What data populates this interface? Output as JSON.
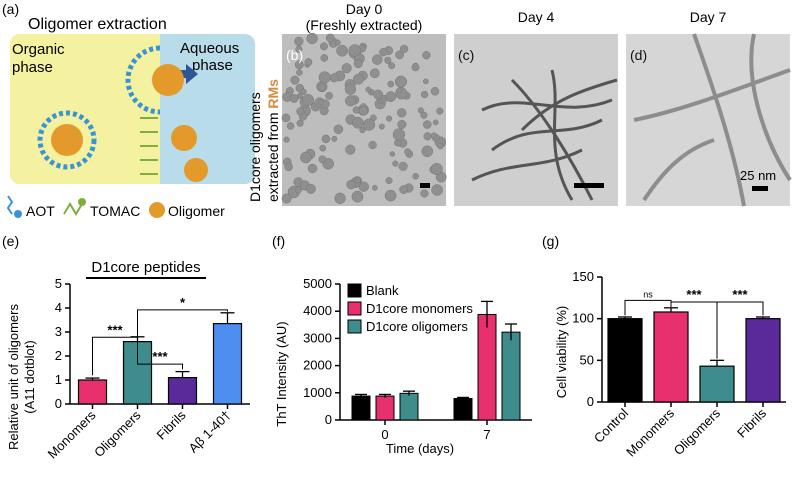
{
  "panel_a": {
    "label": "(a)",
    "title": "Oligomer extraction",
    "organic": [
      "Organic",
      "phase"
    ],
    "aqueous": [
      "Aqueous",
      "phase"
    ],
    "legend": {
      "aot": "AOT",
      "tomac": "TOMAC",
      "oligomer": "Oligomer"
    },
    "colors": {
      "organic_bg": "#f4f1a0",
      "aqueous_bg": "#b9dcea",
      "surfactant": "#3a93d6",
      "oligomer": "#e39a2a"
    }
  },
  "tem": {
    "side_label_top": "D1core oligomers",
    "side_label_bottom_prefix": "extracted from ",
    "side_label_bottom_highlight": "RMs",
    "highlight_color": "#d98a3d",
    "panels": [
      {
        "label": "(b)",
        "title_line1": "Day 0",
        "title_line2": "(Freshly extracted)"
      },
      {
        "label": "(c)",
        "title_line1": "Day 4",
        "title_line2": ""
      },
      {
        "label": "(d)",
        "title_line1": "Day 7",
        "title_line2": ""
      }
    ],
    "scale_text": "25 nm"
  },
  "chart_data": [
    {
      "panel": "(e)",
      "type": "bar",
      "title": "D1core peptides",
      "ylabel_line1": "Relative unit of oligomers",
      "ylabel_line2": "(A11 dotblot)",
      "categories": [
        "Monomers",
        "Oligomers",
        "Fibrils",
        "Aβ 1-40†"
      ],
      "values": [
        1.0,
        2.6,
        1.1,
        3.35
      ],
      "errors": [
        0.08,
        0.2,
        0.25,
        0.45
      ],
      "colors": [
        "#e8306e",
        "#3e8c8c",
        "#5a2a9a",
        "#4d8ef0"
      ],
      "ylim": [
        0,
        5
      ],
      "yticks": [
        "0",
        "1",
        "2",
        "3",
        "4",
        "5"
      ],
      "significance": [
        {
          "from": 0,
          "to": 1,
          "label": "***"
        },
        {
          "from": 1,
          "to": 2,
          "label": "***"
        },
        {
          "from": 1,
          "to": 3,
          "label": "*"
        }
      ]
    },
    {
      "panel": "(f)",
      "type": "bar",
      "ylabel": "ThT Intensity (AU)",
      "xlabel": "Time (days)",
      "categories": [
        "0",
        "7"
      ],
      "series": [
        {
          "name": "Blank",
          "color": "#000000",
          "values": [
            880,
            790
          ],
          "errors": [
            60,
            40
          ]
        },
        {
          "name": "D1core monomers",
          "color": "#e8306e",
          "values": [
            880,
            3880
          ],
          "errors": [
            60,
            480
          ]
        },
        {
          "name": "D1core oligomers",
          "color": "#3e8c8c",
          "values": [
            980,
            3230
          ],
          "errors": [
            80,
            300
          ]
        }
      ],
      "ylim": [
        0,
        5000
      ],
      "yticks": [
        "0",
        "1000",
        "2000",
        "3000",
        "4000",
        "5000"
      ],
      "legend_position": "top-left"
    },
    {
      "panel": "(g)",
      "type": "bar",
      "ylabel": "Cell viability (%)",
      "categories": [
        "Control",
        "Monomers",
        "Oligomers",
        "Fibrils"
      ],
      "values": [
        100,
        108,
        43,
        100
      ],
      "errors": [
        2,
        5,
        7,
        2
      ],
      "colors": [
        "#000000",
        "#e8306e",
        "#3e8c8c",
        "#5a2a9a"
      ],
      "ylim": [
        0,
        150
      ],
      "yticks": [
        "0",
        "50",
        "100",
        "150"
      ],
      "significance": [
        {
          "from": 0,
          "to": 1,
          "label": "ns"
        },
        {
          "from": 1,
          "to": 2,
          "label": "***"
        },
        {
          "from": 2,
          "to": 3,
          "label": "***"
        }
      ]
    }
  ]
}
